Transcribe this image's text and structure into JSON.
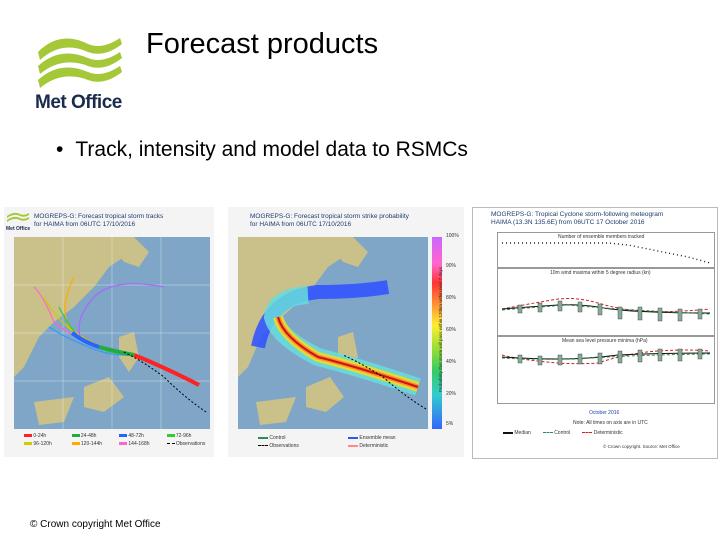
{
  "slide": {
    "title": "Forecast products",
    "bullets": [
      "Track, intensity and model data to RSMCs"
    ],
    "logo_text": "Met Office",
    "footer": "© Crown copyright   Met Office"
  },
  "figures": {
    "tracks": {
      "title_line1": "MOGREPS-G: Forecast tropical storm tracks",
      "title_line2": "for HAIMA from 06UTC 17/10/2016",
      "legend": [
        "0-24h",
        "24-48h",
        "48-72h",
        "72-96h",
        "96-120h",
        "120-144h",
        "144-168h",
        "Observations"
      ],
      "logo": "Met Office"
    },
    "strike": {
      "title_line1": "MOGREPS-G: Forecast tropical storm strike probability",
      "title_line2": "for HAIMA from 06UTC 17/10/2016",
      "colorbar": [
        "100%",
        "90%",
        "80%",
        "60%",
        "40%",
        "20%",
        "5%"
      ],
      "colorbar_label": "Probability that storm will pass within 120km within next 7 days",
      "legend": [
        "Control",
        "Ensemble mean",
        "Observations",
        "Deterministic"
      ]
    },
    "meteogram": {
      "title_line1": "MOGREPS-G: Tropical Cyclone storm-following meteogram",
      "title_line2": "HAIMA (13.3N 135.6E) from 06UTC 17 October 2016",
      "panel1": "Number of ensemble members tracked",
      "panel2": "10m wind maxima within 5 degree radius (kn)",
      "panel3": "Mean sea level pressure minima (hPa)",
      "xlabel": "October 2016",
      "note": "Note: All times on axis are in UTC",
      "legend": [
        "Median",
        "Control",
        "Deterministic"
      ],
      "copyright": "© Crown copyright. Source: Met Office",
      "colors": {
        "median": "#111111",
        "control": "#2e8b57",
        "deterministic": "#cc2222"
      }
    }
  }
}
